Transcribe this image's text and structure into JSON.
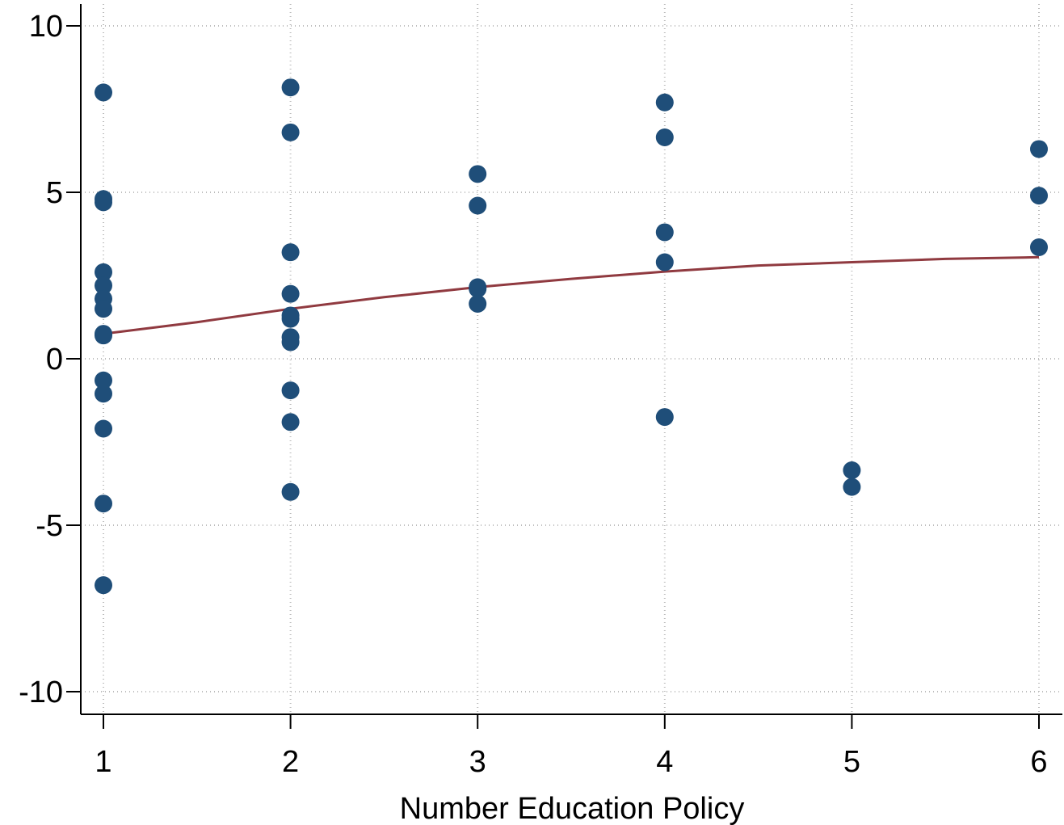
{
  "chart_data": {
    "type": "scatter",
    "title": "",
    "xlabel": "Number Education Policy",
    "ylabel": "",
    "xlim": [
      1,
      6
    ],
    "ylim": [
      -10,
      10
    ],
    "x_ticks": [
      1,
      2,
      3,
      4,
      5,
      6
    ],
    "y_ticks": [
      10,
      5,
      0,
      -5,
      -10
    ],
    "x_tick_labels": [
      "1",
      "2",
      "3",
      "4",
      "5",
      "6"
    ],
    "y_tick_labels": [
      "10",
      "5",
      "0",
      "-5",
      "-10"
    ],
    "grid": "dotted",
    "legend": "none",
    "series": [
      {
        "type": "scatter",
        "color": "#1f4e79",
        "points": [
          {
            "x": 1,
            "y": 8.0
          },
          {
            "x": 1,
            "y": 4.8
          },
          {
            "x": 1,
            "y": 4.7
          },
          {
            "x": 1,
            "y": 2.6
          },
          {
            "x": 1,
            "y": 2.2
          },
          {
            "x": 1,
            "y": 1.8
          },
          {
            "x": 1,
            "y": 1.5
          },
          {
            "x": 1,
            "y": 0.75
          },
          {
            "x": 1,
            "y": 0.7
          },
          {
            "x": 1,
            "y": -0.65
          },
          {
            "x": 1,
            "y": -1.05
          },
          {
            "x": 1,
            "y": -2.1
          },
          {
            "x": 1,
            "y": -4.35
          },
          {
            "x": 1,
            "y": -6.8
          },
          {
            "x": 2,
            "y": 8.15
          },
          {
            "x": 2,
            "y": 6.8
          },
          {
            "x": 2,
            "y": 3.2
          },
          {
            "x": 2,
            "y": 1.95
          },
          {
            "x": 2,
            "y": 1.3
          },
          {
            "x": 2,
            "y": 1.2
          },
          {
            "x": 2,
            "y": 0.65
          },
          {
            "x": 2,
            "y": 0.5
          },
          {
            "x": 2,
            "y": -0.95
          },
          {
            "x": 2,
            "y": -1.9
          },
          {
            "x": 2,
            "y": -4.0
          },
          {
            "x": 3,
            "y": 5.55
          },
          {
            "x": 3,
            "y": 4.6
          },
          {
            "x": 3,
            "y": 2.15
          },
          {
            "x": 3,
            "y": 2.1
          },
          {
            "x": 3,
            "y": 1.65
          },
          {
            "x": 4,
            "y": 7.7
          },
          {
            "x": 4,
            "y": 6.65
          },
          {
            "x": 4,
            "y": 3.8
          },
          {
            "x": 4,
            "y": 2.9
          },
          {
            "x": 4,
            "y": -1.75
          },
          {
            "x": 5,
            "y": -3.35
          },
          {
            "x": 5,
            "y": -3.85
          },
          {
            "x": 6,
            "y": 6.3
          },
          {
            "x": 6,
            "y": 4.9
          },
          {
            "x": 6,
            "y": 3.35
          }
        ]
      },
      {
        "type": "line",
        "color": "#903a40",
        "points": [
          {
            "x": 1,
            "y": 0.75
          },
          {
            "x": 1.5,
            "y": 1.1
          },
          {
            "x": 2,
            "y": 1.5
          },
          {
            "x": 2.5,
            "y": 1.85
          },
          {
            "x": 3,
            "y": 2.15
          },
          {
            "x": 3.5,
            "y": 2.4
          },
          {
            "x": 4,
            "y": 2.62
          },
          {
            "x": 4.5,
            "y": 2.8
          },
          {
            "x": 5,
            "y": 2.9
          },
          {
            "x": 5.5,
            "y": 3.0
          },
          {
            "x": 6,
            "y": 3.05
          }
        ]
      }
    ]
  }
}
